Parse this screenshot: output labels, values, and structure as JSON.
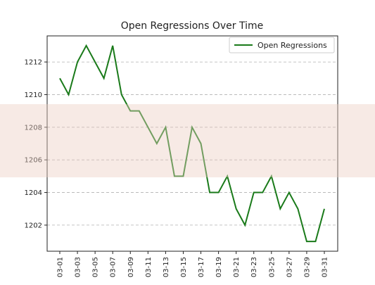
{
  "chart_data": {
    "type": "line",
    "title": "Open Regressions Over Time",
    "xlabel": "",
    "ylabel": "",
    "x": [
      "03-01",
      "03-02",
      "03-03",
      "03-04",
      "03-05",
      "03-06",
      "03-07",
      "03-08",
      "03-09",
      "03-10",
      "03-11",
      "03-12",
      "03-13",
      "03-14",
      "03-15",
      "03-16",
      "03-17",
      "03-18",
      "03-19",
      "03-20",
      "03-21",
      "03-22",
      "03-23",
      "03-24",
      "03-25",
      "03-26",
      "03-27",
      "03-28",
      "03-29",
      "03-30",
      "03-31"
    ],
    "x_tick_labels": [
      "03-01",
      "03-03",
      "03-05",
      "03-07",
      "03-09",
      "03-11",
      "03-13",
      "03-15",
      "03-17",
      "03-19",
      "03-21",
      "03-23",
      "03-25",
      "03-27",
      "03-29",
      "03-31"
    ],
    "series": [
      {
        "name": "Open Regressions",
        "color": "#1a7a1a",
        "values": [
          1211,
          1210,
          1212,
          1213,
          1212,
          1211,
          1213,
          1210,
          1209,
          1209,
          1208,
          1207,
          1208,
          1205,
          1205,
          1208,
          1207,
          1204,
          1204,
          1205,
          1203,
          1202,
          1204,
          1204,
          1205,
          1203,
          1204,
          1203,
          1201,
          1201,
          1203
        ]
      }
    ],
    "y_ticks": [
      1202,
      1204,
      1206,
      1208,
      1210,
      1212
    ],
    "ylim": [
      1200.4,
      1213.6
    ],
    "grid": "horizontal dashed",
    "legend_position": "top-right"
  }
}
